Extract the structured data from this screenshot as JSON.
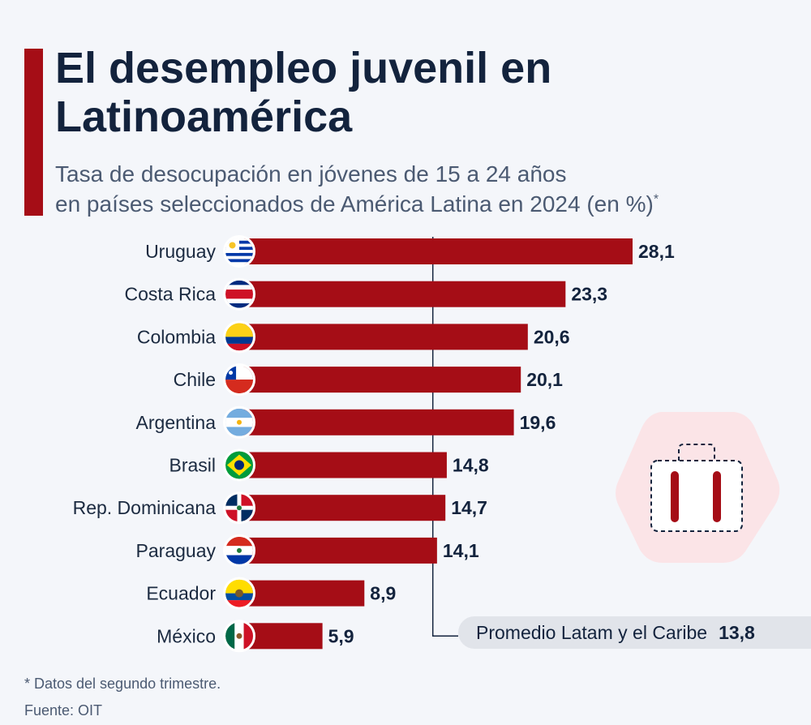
{
  "header": {
    "title": "El desempleo juvenil en Latinoamérica",
    "subtitle_line1": "Tasa de desocupación en jóvenes de 15 a 24 años",
    "subtitle_line2": "en países seleccionados de América Latina en 2024 (en %)",
    "subtitle_marker": "*"
  },
  "chart_data": {
    "type": "bar",
    "orientation": "horizontal",
    "categories": [
      "Uruguay",
      "Costa Rica",
      "Colombia",
      "Chile",
      "Argentina",
      "Brasil",
      "Rep. Dominicana",
      "Paraguay",
      "Ecuador",
      "México"
    ],
    "values": [
      28.1,
      23.3,
      20.6,
      20.1,
      19.6,
      14.8,
      14.7,
      14.1,
      8.9,
      5.9
    ],
    "value_labels": [
      "28,1",
      "23,3",
      "20,6",
      "20,1",
      "19,6",
      "14,8",
      "14,7",
      "14,1",
      "8,9",
      "5,9"
    ],
    "flag_icons": [
      "uruguay-flag-icon",
      "costa-rica-flag-icon",
      "colombia-flag-icon",
      "chile-flag-icon",
      "argentina-flag-icon",
      "brazil-flag-icon",
      "dominican-republic-flag-icon",
      "paraguay-flag-icon",
      "ecuador-flag-icon",
      "mexico-flag-icon"
    ],
    "reference_line": {
      "label": "Promedio Latam y el Caribe",
      "value": 13.8,
      "value_label": "13,8"
    },
    "xlim": [
      0,
      28.1
    ],
    "grid": false,
    "bar_color": "#a50d16"
  },
  "footer": {
    "footnote": "* Datos del segundo trimestre.",
    "source": "Fuente: OIT"
  },
  "decoration": {
    "icon": "suitcase-icon"
  },
  "colors": {
    "accent": "#a50d16",
    "title": "#13233d",
    "subtitle": "#4b5a72"
  }
}
